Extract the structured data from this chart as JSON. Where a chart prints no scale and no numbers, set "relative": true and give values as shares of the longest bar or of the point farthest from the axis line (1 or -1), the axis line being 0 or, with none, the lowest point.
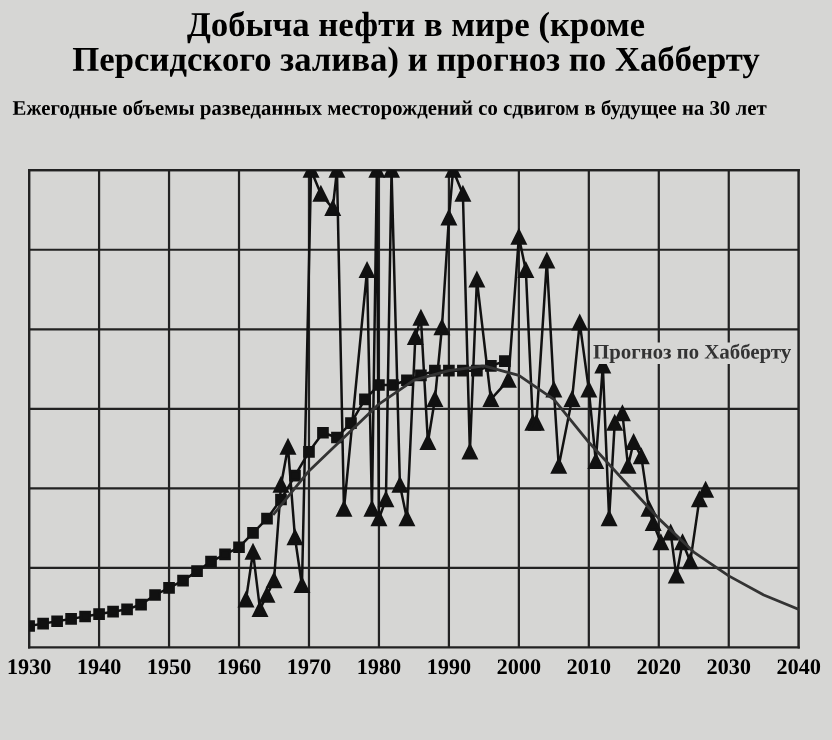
{
  "chart_data": {
    "type": "line",
    "title": "Добыча нефти в мире (кроме\nПерсидского залива) и прогноз по Хабберту",
    "subtitle": "Ежегодные объемы разведанных месторождений со сдвигом в будущее на 30 лет",
    "relative": true,
    "grid": true,
    "legend": false,
    "xlim": [
      1930,
      2040
    ],
    "xticks": [
      1930,
      1940,
      1950,
      1960,
      1970,
      1980,
      1990,
      2000,
      2010,
      2020,
      2030,
      2040
    ],
    "series": [
      {
        "color": "#111111",
        "marker": "triangle",
        "x": [
          1961,
          1962,
          1963,
          1964,
          1965,
          1966,
          1967,
          1968,
          1969,
          1970.3,
          1971.7,
          1973.4,
          1974,
          1975,
          1978.3,
          1979,
          1979.7,
          1980,
          1981,
          1981.8,
          1983,
          1984,
          1985.2,
          1986,
          1987,
          1988,
          1989,
          1990,
          1990.6,
          1992,
          1993,
          1994,
          1996,
          1998.5,
          2000,
          2001,
          2002,
          2002.5,
          2004,
          2005,
          2005.7,
          2007.6,
          2008.7,
          2010,
          2011,
          2012,
          2012.9,
          2013.7,
          2014.8,
          2015.6,
          2016.4,
          2017.5,
          2018.6,
          2019.2,
          2020.3,
          2021.7,
          2022.5,
          2023.4,
          2024.5,
          2025.8,
          2026.7
        ],
        "values": [
          0.1,
          0.2,
          0.08,
          0.11,
          0.14,
          0.34,
          0.42,
          0.23,
          0.13,
          1.0,
          0.95,
          0.92,
          1.0,
          0.29,
          0.79,
          0.29,
          1.0,
          0.27,
          0.31,
          1.0,
          0.34,
          0.27,
          0.65,
          0.69,
          0.43,
          0.52,
          0.67,
          0.9,
          1.0,
          0.95,
          0.41,
          0.77,
          0.52,
          0.56,
          0.86,
          0.79,
          0.47,
          0.47,
          0.81,
          0.54,
          0.38,
          0.52,
          0.68,
          0.54,
          0.39,
          0.59,
          0.27,
          0.47,
          0.49,
          0.38,
          0.43,
          0.4,
          0.29,
          0.26,
          0.22,
          0.24,
          0.15,
          0.22,
          0.18,
          0.31,
          0.33
        ]
      },
      {
        "color": "#111111",
        "marker": "square",
        "x": [
          1930,
          1932,
          1934,
          1936,
          1938,
          1940,
          1942,
          1944,
          1946,
          1948,
          1950,
          1952,
          1954,
          1956,
          1958,
          1960,
          1962,
          1964,
          1966,
          1968,
          1970,
          1972,
          1974,
          1976,
          1978,
          1980,
          1982,
          1984,
          1986,
          1988,
          1990,
          1992,
          1994,
          1996,
          1998
        ],
        "values": [
          0.045,
          0.05,
          0.055,
          0.06,
          0.065,
          0.07,
          0.075,
          0.08,
          0.09,
          0.11,
          0.125,
          0.14,
          0.16,
          0.18,
          0.195,
          0.21,
          0.24,
          0.27,
          0.31,
          0.36,
          0.41,
          0.45,
          0.44,
          0.47,
          0.52,
          0.55,
          0.55,
          0.56,
          0.57,
          0.58,
          0.58,
          0.58,
          0.58,
          0.59,
          0.6
        ]
      },
      {
        "name": "Прогноз по Хабберту",
        "color": "#333333",
        "marker": "none",
        "x": [
          1965,
          1970,
          1975,
          1980,
          1985,
          1990,
          1995,
          2000,
          2005,
          2010,
          2015,
          2020,
          2025,
          2030,
          2035,
          2040
        ],
        "values": [
          0.28,
          0.37,
          0.44,
          0.51,
          0.56,
          0.58,
          0.59,
          0.57,
          0.52,
          0.43,
          0.35,
          0.27,
          0.2,
          0.15,
          0.11,
          0.08
        ]
      }
    ]
  }
}
